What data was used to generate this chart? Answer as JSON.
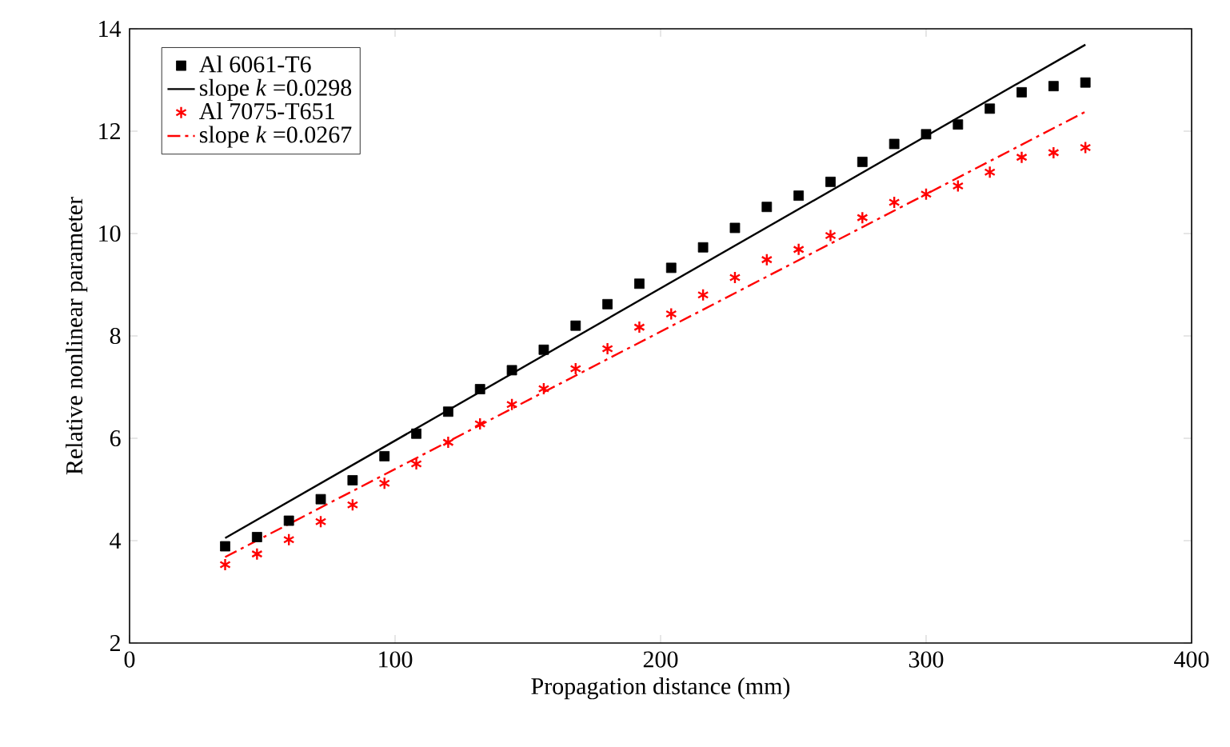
{
  "chart_data": {
    "type": "scatter",
    "xlabel": "Propagation distance (mm)",
    "ylabel": "Relative nonlinear parameter",
    "xlim": [
      0,
      400
    ],
    "ylim": [
      2,
      14
    ],
    "xticks": [
      0,
      100,
      200,
      300,
      400
    ],
    "yticks": [
      2,
      4,
      6,
      8,
      10,
      12,
      14
    ],
    "grid": false,
    "legend": "top left",
    "series": [
      {
        "name": "Al 6061-T6",
        "marker": "square",
        "color": "#000000",
        "x": [
          36,
          48,
          60,
          72,
          84,
          96,
          108,
          120,
          132,
          144,
          156,
          168,
          180,
          192,
          204,
          216,
          228,
          240,
          252,
          264,
          276,
          288,
          300,
          312,
          324,
          336,
          348,
          360
        ],
        "values": [
          3.89,
          4.07,
          4.39,
          4.81,
          5.18,
          5.65,
          6.09,
          6.52,
          6.96,
          7.33,
          7.73,
          8.2,
          8.62,
          9.02,
          9.33,
          9.73,
          10.11,
          10.52,
          10.74,
          11.01,
          11.4,
          11.75,
          11.94,
          12.13,
          12.44,
          12.76,
          12.88,
          12.95
        ]
      },
      {
        "name": "slope *k* =0.0298",
        "type": "line",
        "marker": "none",
        "line_style": "solid",
        "color": "#000000",
        "x": [
          36,
          360
        ],
        "values": [
          4.05,
          13.69
        ]
      },
      {
        "name": "Al 7075-T651",
        "marker": "cross",
        "color": "#ff0000",
        "x": [
          36,
          48,
          60,
          72,
          84,
          96,
          108,
          120,
          132,
          144,
          156,
          168,
          180,
          192,
          204,
          216,
          228,
          240,
          252,
          264,
          276,
          288,
          300,
          312,
          324,
          336,
          348,
          360
        ],
        "values": [
          3.53,
          3.74,
          4.02,
          4.37,
          4.7,
          5.12,
          5.5,
          5.92,
          6.28,
          6.66,
          6.97,
          7.36,
          7.75,
          8.17,
          8.43,
          8.8,
          9.14,
          9.49,
          9.69,
          9.96,
          10.31,
          10.61,
          10.77,
          10.93,
          11.2,
          11.49,
          11.58,
          11.68
        ]
      },
      {
        "name": "slope *k* =0.0267",
        "type": "line",
        "marker": "none",
        "line_style": "dashdot",
        "color": "#ff0000",
        "x": [
          36,
          360
        ],
        "values": [
          3.68,
          12.38
        ]
      }
    ]
  }
}
